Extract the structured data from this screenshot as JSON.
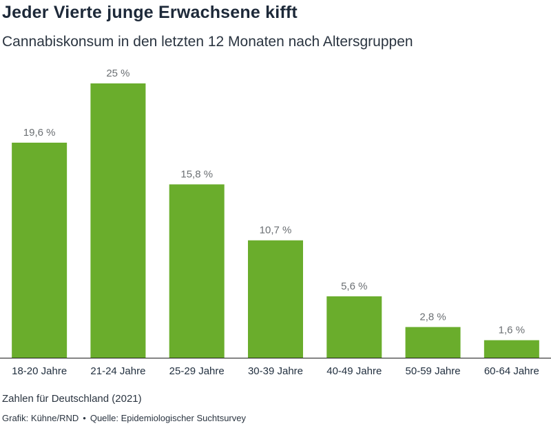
{
  "header": {
    "title": "Jeder Vierte junge Erwachsene kifft",
    "subtitle": "Cannabiskonsum in den letzten 12 Monaten nach Altersgruppen"
  },
  "chart_data": {
    "type": "bar",
    "categories": [
      "18-20 Jahre",
      "21-24 Jahre",
      "25-29 Jahre",
      "30-39 Jahre",
      "40-49 Jahre",
      "50-59 Jahre",
      "60-64 Jahre"
    ],
    "values": [
      19.6,
      25,
      15.8,
      10.7,
      5.6,
      2.8,
      1.6
    ],
    "value_labels": [
      "19,6 %",
      "25 %",
      "15,8 %",
      "10,7 %",
      "5,6 %",
      "2,8 %",
      "1,6 %"
    ],
    "title": "Jeder Vierte junge Erwachsene kifft",
    "subtitle": "Cannabiskonsum in den letzten 12 Monaten nach Altersgruppen",
    "xlabel": "",
    "ylabel": "",
    "ylim": [
      0,
      25
    ],
    "grid": false,
    "bar_color": "#6aad2c",
    "label_color": "#6b6f73"
  },
  "footer": {
    "note": "Zahlen für Deutschland (2021)",
    "credit_source": "Grafik: Kühne/RND",
    "separator": "•",
    "credit_data": "Quelle: Epidemiologischer Suchtsurvey"
  }
}
